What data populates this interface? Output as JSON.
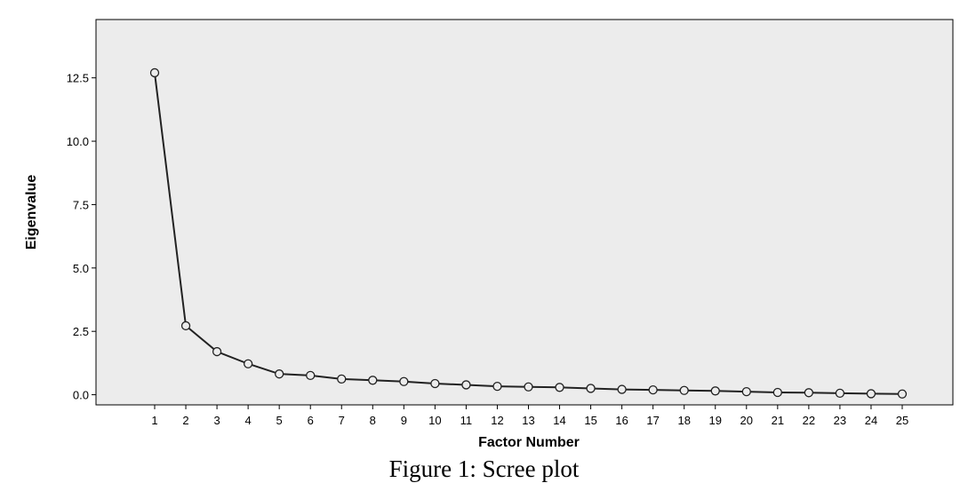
{
  "caption": "Figure 1: Scree plot",
  "chart_data": {
    "type": "line",
    "xlabel": "Factor Number",
    "ylabel": "Eigenvalue",
    "x": [
      1,
      2,
      3,
      4,
      5,
      6,
      7,
      8,
      9,
      10,
      11,
      12,
      13,
      14,
      15,
      16,
      17,
      18,
      19,
      20,
      21,
      22,
      23,
      24,
      25
    ],
    "y_ticks": [
      "0.0",
      "2.5",
      "5.0",
      "7.5",
      "10.0",
      "12.5"
    ],
    "ylim": [
      -0.4,
      14.8
    ],
    "grid": false,
    "marker": "open-circle",
    "series": [
      {
        "values": [
          12.7,
          2.72,
          1.7,
          1.22,
          0.82,
          0.76,
          0.62,
          0.57,
          0.52,
          0.44,
          0.39,
          0.33,
          0.31,
          0.29,
          0.25,
          0.21,
          0.19,
          0.17,
          0.15,
          0.12,
          0.09,
          0.08,
          0.06,
          0.04,
          0.03
        ]
      }
    ],
    "plot_background": "#ececec",
    "line_color": "#222222"
  }
}
